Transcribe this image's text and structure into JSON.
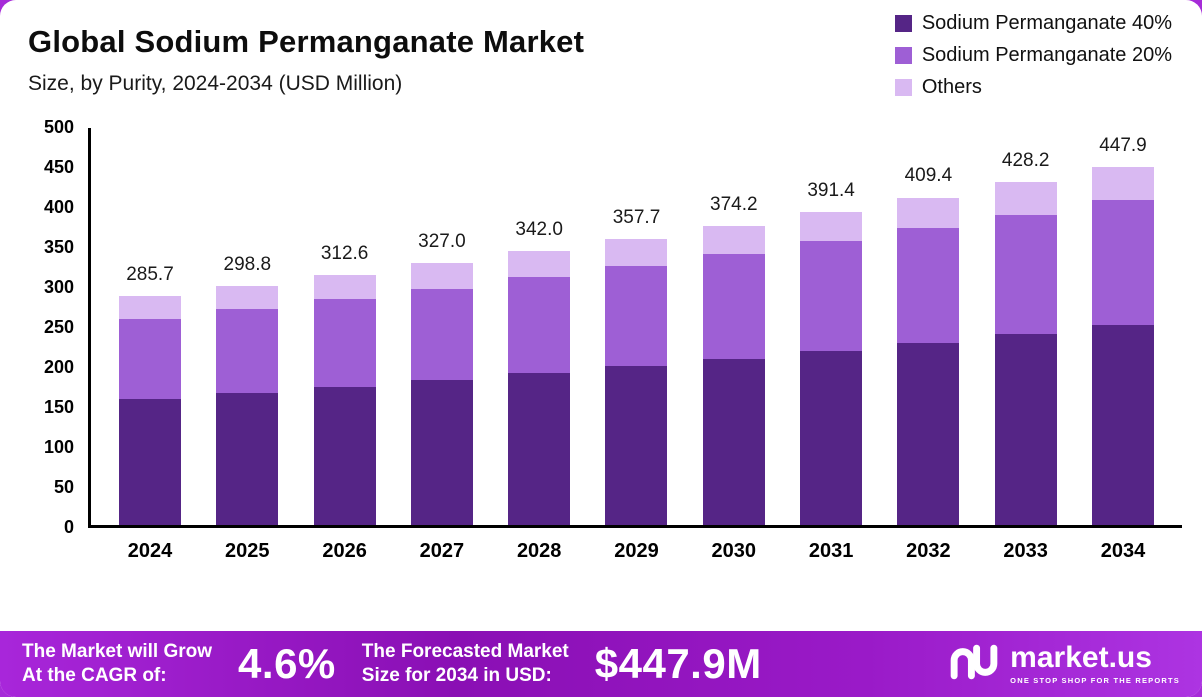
{
  "chart_data": {
    "type": "bar",
    "stacked": true,
    "title": "Global Sodium Permanganate Market",
    "subtitle": "Size, by Purity, 2024-2034 (USD Million)",
    "categories": [
      "2024",
      "2025",
      "2026",
      "2027",
      "2028",
      "2029",
      "2030",
      "2031",
      "2032",
      "2033",
      "2034"
    ],
    "totals": [
      "285.7",
      "298.8",
      "312.6",
      "327.0",
      "342.0",
      "357.7",
      "374.2",
      "391.4",
      "409.4",
      "428.2",
      "447.9"
    ],
    "series": [
      {
        "name": "Sodium Permanganate 40%",
        "color": "#552586",
        "values": [
          157,
          165,
          172,
          181,
          190,
          199,
          208,
          218,
          228,
          239,
          250
        ]
      },
      {
        "name": "Sodium Permanganate 20%",
        "color": "#9e5fd5",
        "values": [
          101,
          105,
          111,
          114,
          120,
          125,
          131,
          137,
          143,
          149,
          156
        ]
      },
      {
        "name": "Others",
        "color": "#d9b9f2",
        "values": [
          27.7,
          28.8,
          29.6,
          32.0,
          32.0,
          33.7,
          35.2,
          36.4,
          38.4,
          40.2,
          41.9
        ]
      }
    ],
    "y_ticks": [
      0,
      50,
      100,
      150,
      200,
      250,
      300,
      350,
      400,
      450,
      500
    ],
    "ylim": [
      0,
      500
    ],
    "grid": false,
    "legend_position": "top-right"
  },
  "banner": {
    "cagr_label": "The Market will Grow\nAt the CAGR of:",
    "cagr_value": "4.6%",
    "forecast_label": "The Forecasted Market\nSize for 2034 in USD:",
    "forecast_value": "$447.9M",
    "logo_name": "market.us",
    "logo_tagline": "ONE STOP SHOP FOR THE REPORTS"
  }
}
